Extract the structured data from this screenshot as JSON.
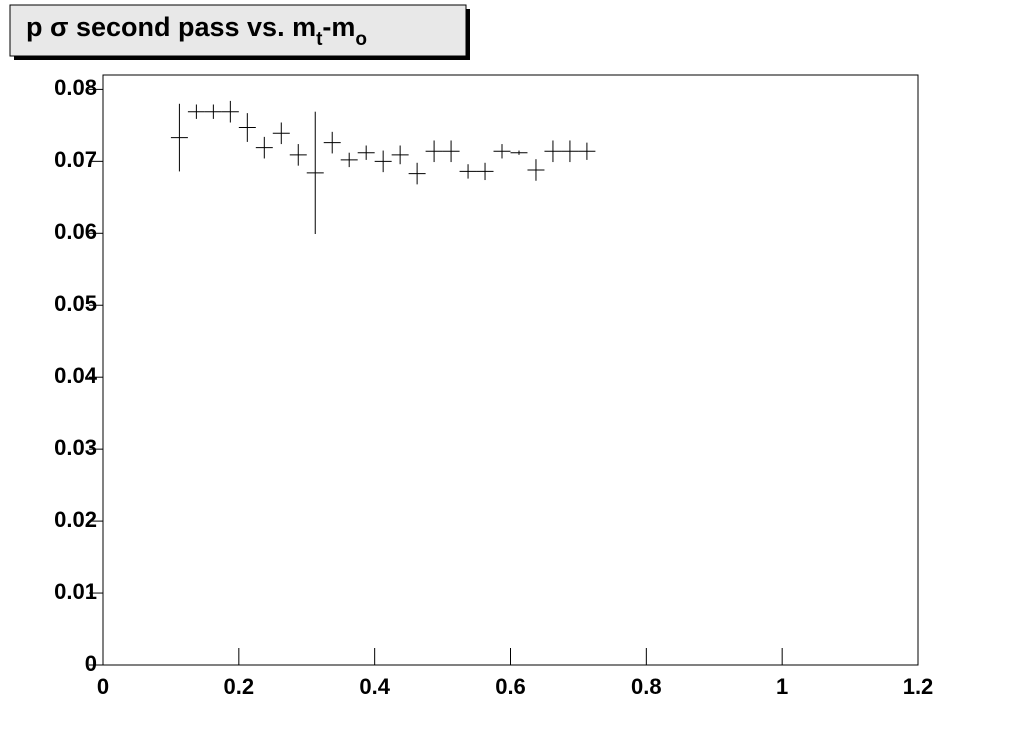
{
  "chart_data": {
    "type": "errorbar",
    "title": [
      "p σ second pass vs. m",
      "t",
      "-m",
      "o"
    ],
    "x": [
      0.1125,
      0.1375,
      0.1625,
      0.1875,
      0.2125,
      0.2375,
      0.2625,
      0.2875,
      0.3125,
      0.3375,
      0.3625,
      0.3875,
      0.4125,
      0.4375,
      0.4625,
      0.4875,
      0.5125,
      0.5375,
      0.5625,
      0.5875,
      0.6125,
      0.6375,
      0.6625,
      0.6875,
      0.7125
    ],
    "values": [
      0.0733,
      0.0769,
      0.0769,
      0.0769,
      0.0747,
      0.0719,
      0.0739,
      0.0709,
      0.0684,
      0.0726,
      0.0702,
      0.0712,
      0.07,
      0.0709,
      0.0683,
      0.0714,
      0.0714,
      0.0686,
      0.0686,
      0.0714,
      0.0712,
      0.0688,
      0.0714,
      0.0714,
      0.0714
    ],
    "yerr": [
      0.0047,
      0.001,
      0.001,
      0.0015,
      0.002,
      0.0015,
      0.0015,
      0.0015,
      0.0085,
      0.0015,
      0.001,
      0.001,
      0.0015,
      0.0013,
      0.0015,
      0.0015,
      0.0015,
      0.001,
      0.0012,
      0.001,
      0.0003,
      0.0015,
      0.0015,
      0.0015,
      0.0012
    ],
    "xerr": 0.0125,
    "color": "#000000",
    "xlim": [
      0,
      1.2
    ],
    "xticks": [
      0,
      0.2,
      0.4,
      0.6,
      0.8,
      1,
      1.2
    ],
    "ylim": [
      0,
      0.082
    ],
    "yticks": [
      0,
      0.01,
      0.02,
      0.03,
      0.04,
      0.05,
      0.06,
      0.07,
      0.08
    ]
  }
}
